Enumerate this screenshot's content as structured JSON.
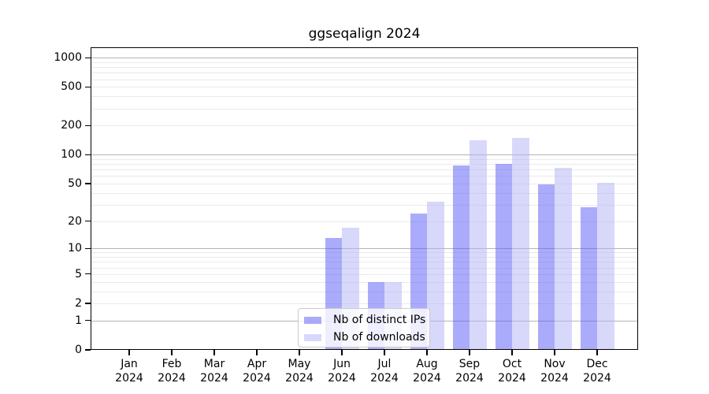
{
  "title": "ggseqalign 2024",
  "chart_data": {
    "type": "bar",
    "title": "ggseqalign 2024",
    "categories": [
      "Jan",
      "Feb",
      "Mar",
      "Apr",
      "May",
      "Jun",
      "Jul",
      "Aug",
      "Sep",
      "Oct",
      "Nov",
      "Dec"
    ],
    "x_tick_year_line": "2024",
    "series": [
      {
        "name": "Nb of distinct IPs",
        "key": "distinct-ips",
        "fill": "rgba(88,88,248,0.5)",
        "values": [
          0,
          0,
          0,
          0,
          0,
          13,
          4,
          24,
          78,
          81,
          49,
          28
        ]
      },
      {
        "name": "Nb of downloads",
        "key": "downloads",
        "fill": "rgba(177,177,247,0.5)",
        "values": [
          0,
          0,
          0,
          0,
          0,
          17,
          4,
          32,
          140,
          149,
          73,
          51
        ]
      }
    ],
    "xlabel": "",
    "ylabel": "",
    "y_axis": {
      "scale": "log1p",
      "tick_labels": [
        0,
        1,
        2,
        5,
        10,
        20,
        50,
        100,
        200,
        500,
        1000
      ],
      "grid_major_at": [
        1,
        10,
        100,
        1000
      ],
      "ylim": [
        0,
        1290
      ],
      "grid": "on"
    },
    "legend": {
      "position": "lower-center",
      "background": "rgba(255,255,255,0.8)",
      "border_color": "#cccccc"
    },
    "colors": {
      "grid_major": "#b4b4b4",
      "grid_minor": "#eaeaea",
      "axis": "#000000",
      "text": "#000000"
    }
  }
}
